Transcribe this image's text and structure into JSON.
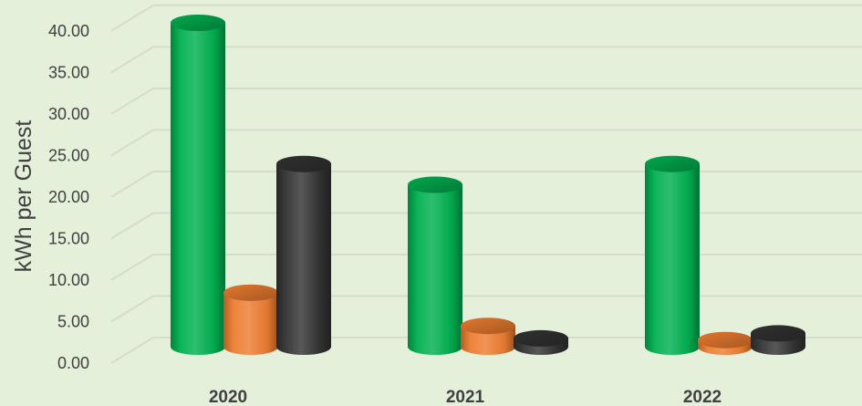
{
  "chart_data": {
    "type": "bar",
    "style": "3d-cylinder",
    "categories": [
      "2020",
      "2021",
      "2022"
    ],
    "series": [
      {
        "values": [
          39.0,
          19.5,
          22.0
        ],
        "color": "#00b050"
      },
      {
        "values": [
          6.5,
          2.5,
          0.8
        ],
        "color": "#ed7d31"
      },
      {
        "values": [
          22.0,
          1.0,
          1.6
        ],
        "color": "#333333"
      }
    ],
    "ylabel": "kWh per Guest",
    "ylim": [
      0,
      40
    ],
    "yticks": [
      "0.00",
      "5.00",
      "10.00",
      "15.00",
      "20.00",
      "25.00",
      "30.00",
      "35.00",
      "40.00"
    ],
    "grid": true,
    "legend": "none",
    "background": "#e4f0da"
  }
}
